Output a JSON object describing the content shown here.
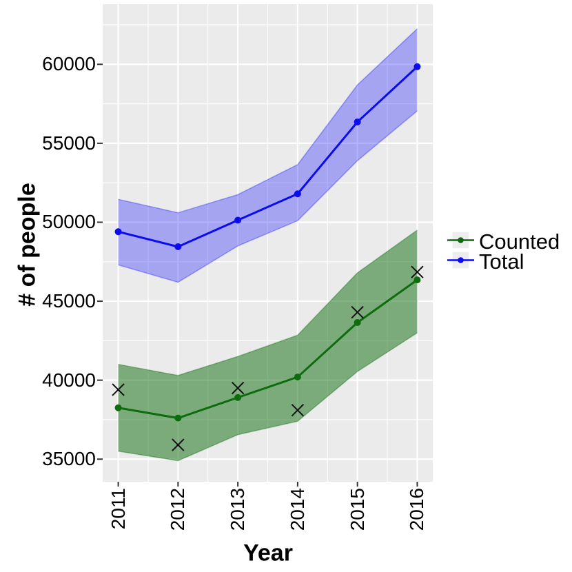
{
  "figure": {
    "background": "#ffffff",
    "panel_background": "#ebebeb",
    "gridline_color": "#ffffff",
    "tick_color": "#333333",
    "text_color": "#000000",
    "legend_key_background": "#ededed"
  },
  "chart_data": {
    "type": "line",
    "title": "",
    "xlabel": "Year",
    "ylabel": "# of people",
    "grid": true,
    "legend_position": "right",
    "x": [
      2011,
      2012,
      2013,
      2014,
      2015,
      2016
    ],
    "x_tick_labels": [
      "2011",
      "2012",
      "2013",
      "2014",
      "2015",
      "2016"
    ],
    "y_ticks": [
      35000,
      40000,
      45000,
      50000,
      55000,
      60000
    ],
    "y_tick_labels": [
      "35000",
      "40000",
      "45000",
      "50000",
      "55000",
      "60000"
    ],
    "x_minor_ticks": [
      2011.5,
      2012.5,
      2013.5,
      2014.5,
      2015.5
    ],
    "y_minor_ticks": [
      37500,
      42500,
      47500,
      52500,
      57500,
      62500
    ],
    "xlim": [
      2010.74,
      2016.26
    ],
    "ylim": [
      33570,
      63810
    ],
    "series": [
      {
        "name": "Counted",
        "color": "#0d6d0d",
        "ribbon_fill": "rgba(0,100,0,0.48)",
        "ribbon_edge": "rgba(0,100,0,0.35)",
        "values": [
          38250,
          37600,
          38900,
          40200,
          43650,
          46350
        ],
        "lower": [
          35500,
          34900,
          36550,
          37400,
          40550,
          43000
        ],
        "upper": [
          41000,
          40300,
          41500,
          42850,
          46800,
          49500
        ]
      },
      {
        "name": "Total",
        "color": "#0b0bef",
        "ribbon_fill": "rgba(0,0,255,0.30)",
        "ribbon_edge": "rgba(0,0,255,0.30)",
        "values": [
          49400,
          48450,
          50130,
          51800,
          56350,
          59850
        ],
        "lower": [
          47300,
          46200,
          48500,
          50100,
          53900,
          57050
        ],
        "upper": [
          51450,
          50600,
          51750,
          53650,
          58700,
          62250
        ]
      }
    ],
    "point_markers": {
      "name": "observed-x-markers",
      "shape": "x",
      "color": "#111111",
      "values": [
        39400,
        35900,
        39500,
        38100,
        44300,
        46850
      ]
    }
  },
  "legend": {
    "items": [
      {
        "label": "Counted"
      },
      {
        "label": "Total"
      }
    ]
  }
}
